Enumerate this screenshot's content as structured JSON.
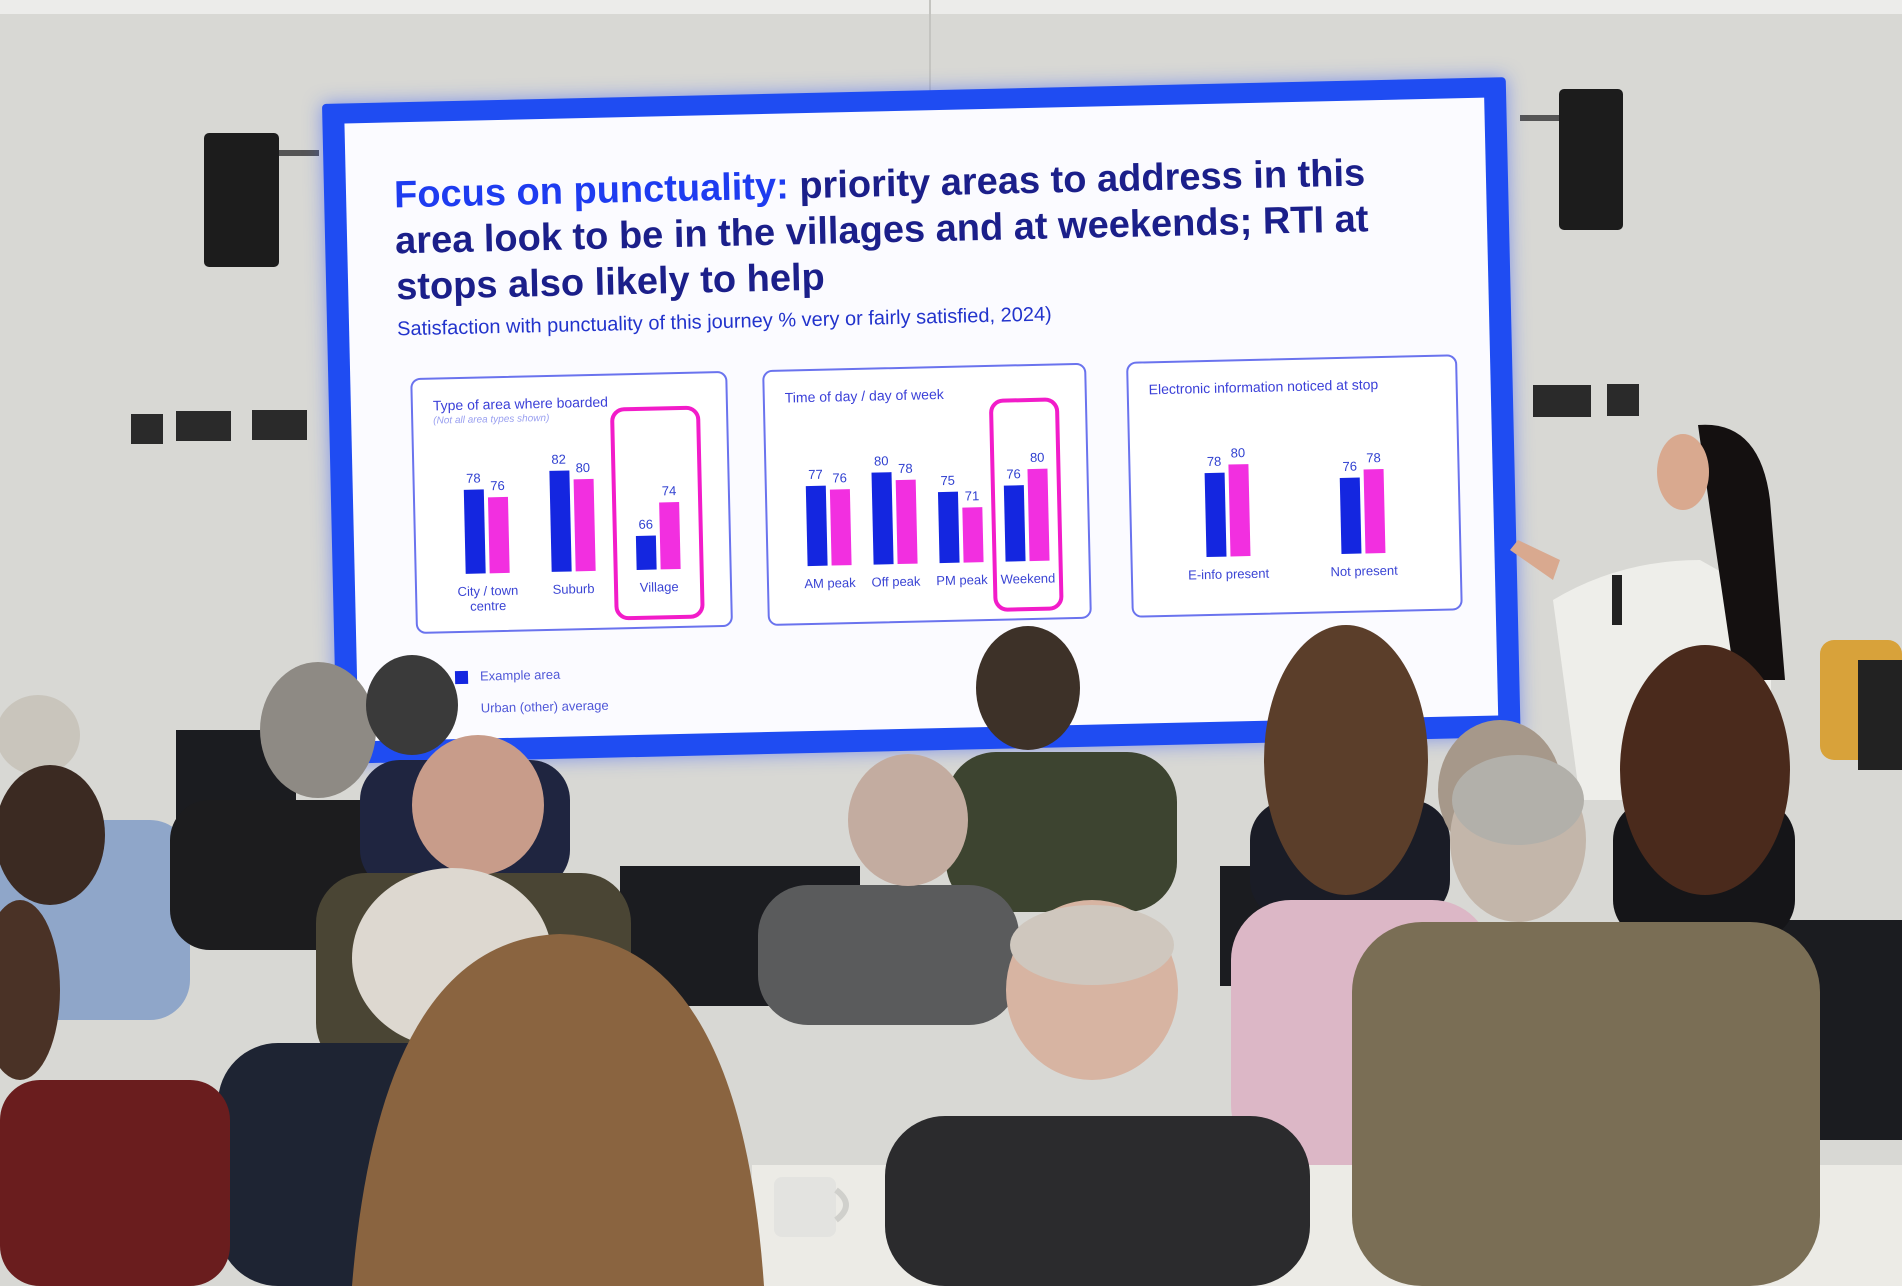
{
  "slide": {
    "title_accent": "Focus on punctuality:",
    "title_rest": " priority areas to address in this area look to be in the villages and at weekends; RTI at stops also likely to help",
    "subtitle": "Satisfaction with punctuality of this journey  % very or fairly satisfied, 2024)",
    "legend": [
      {
        "label": "Example area",
        "color": "#1426e0"
      },
      {
        "label": "Urban (other) average",
        "color": "#f22fe0"
      }
    ]
  },
  "chart_data": [
    {
      "type": "bar",
      "title": "Type of area where boarded",
      "note": "(Not all area types shown)",
      "categories": [
        "City / town centre",
        "Suburb",
        "Village"
      ],
      "highlighted": [
        "Village"
      ],
      "series": [
        {
          "name": "Example area",
          "values": [
            78,
            82,
            66
          ]
        },
        {
          "name": "Urban (other) average",
          "values": [
            76,
            80,
            74
          ]
        }
      ]
    },
    {
      "type": "bar",
      "title": "Time of day / day of week",
      "categories": [
        "AM peak",
        "Off peak",
        "PM peak",
        "Weekend"
      ],
      "highlighted": [
        "Weekend"
      ],
      "series": [
        {
          "name": "Example area",
          "values": [
            77,
            80,
            75,
            76
          ]
        },
        {
          "name": "Urban (other) average",
          "values": [
            76,
            78,
            71,
            80
          ]
        }
      ]
    },
    {
      "type": "bar",
      "title": "Electronic information noticed at stop",
      "categories": [
        "E-info present",
        "Not present"
      ],
      "highlighted": [],
      "series": [
        {
          "name": "Example area",
          "values": [
            78,
            76
          ]
        },
        {
          "name": "Urban (other) average",
          "values": [
            80,
            78
          ]
        }
      ]
    }
  ]
}
